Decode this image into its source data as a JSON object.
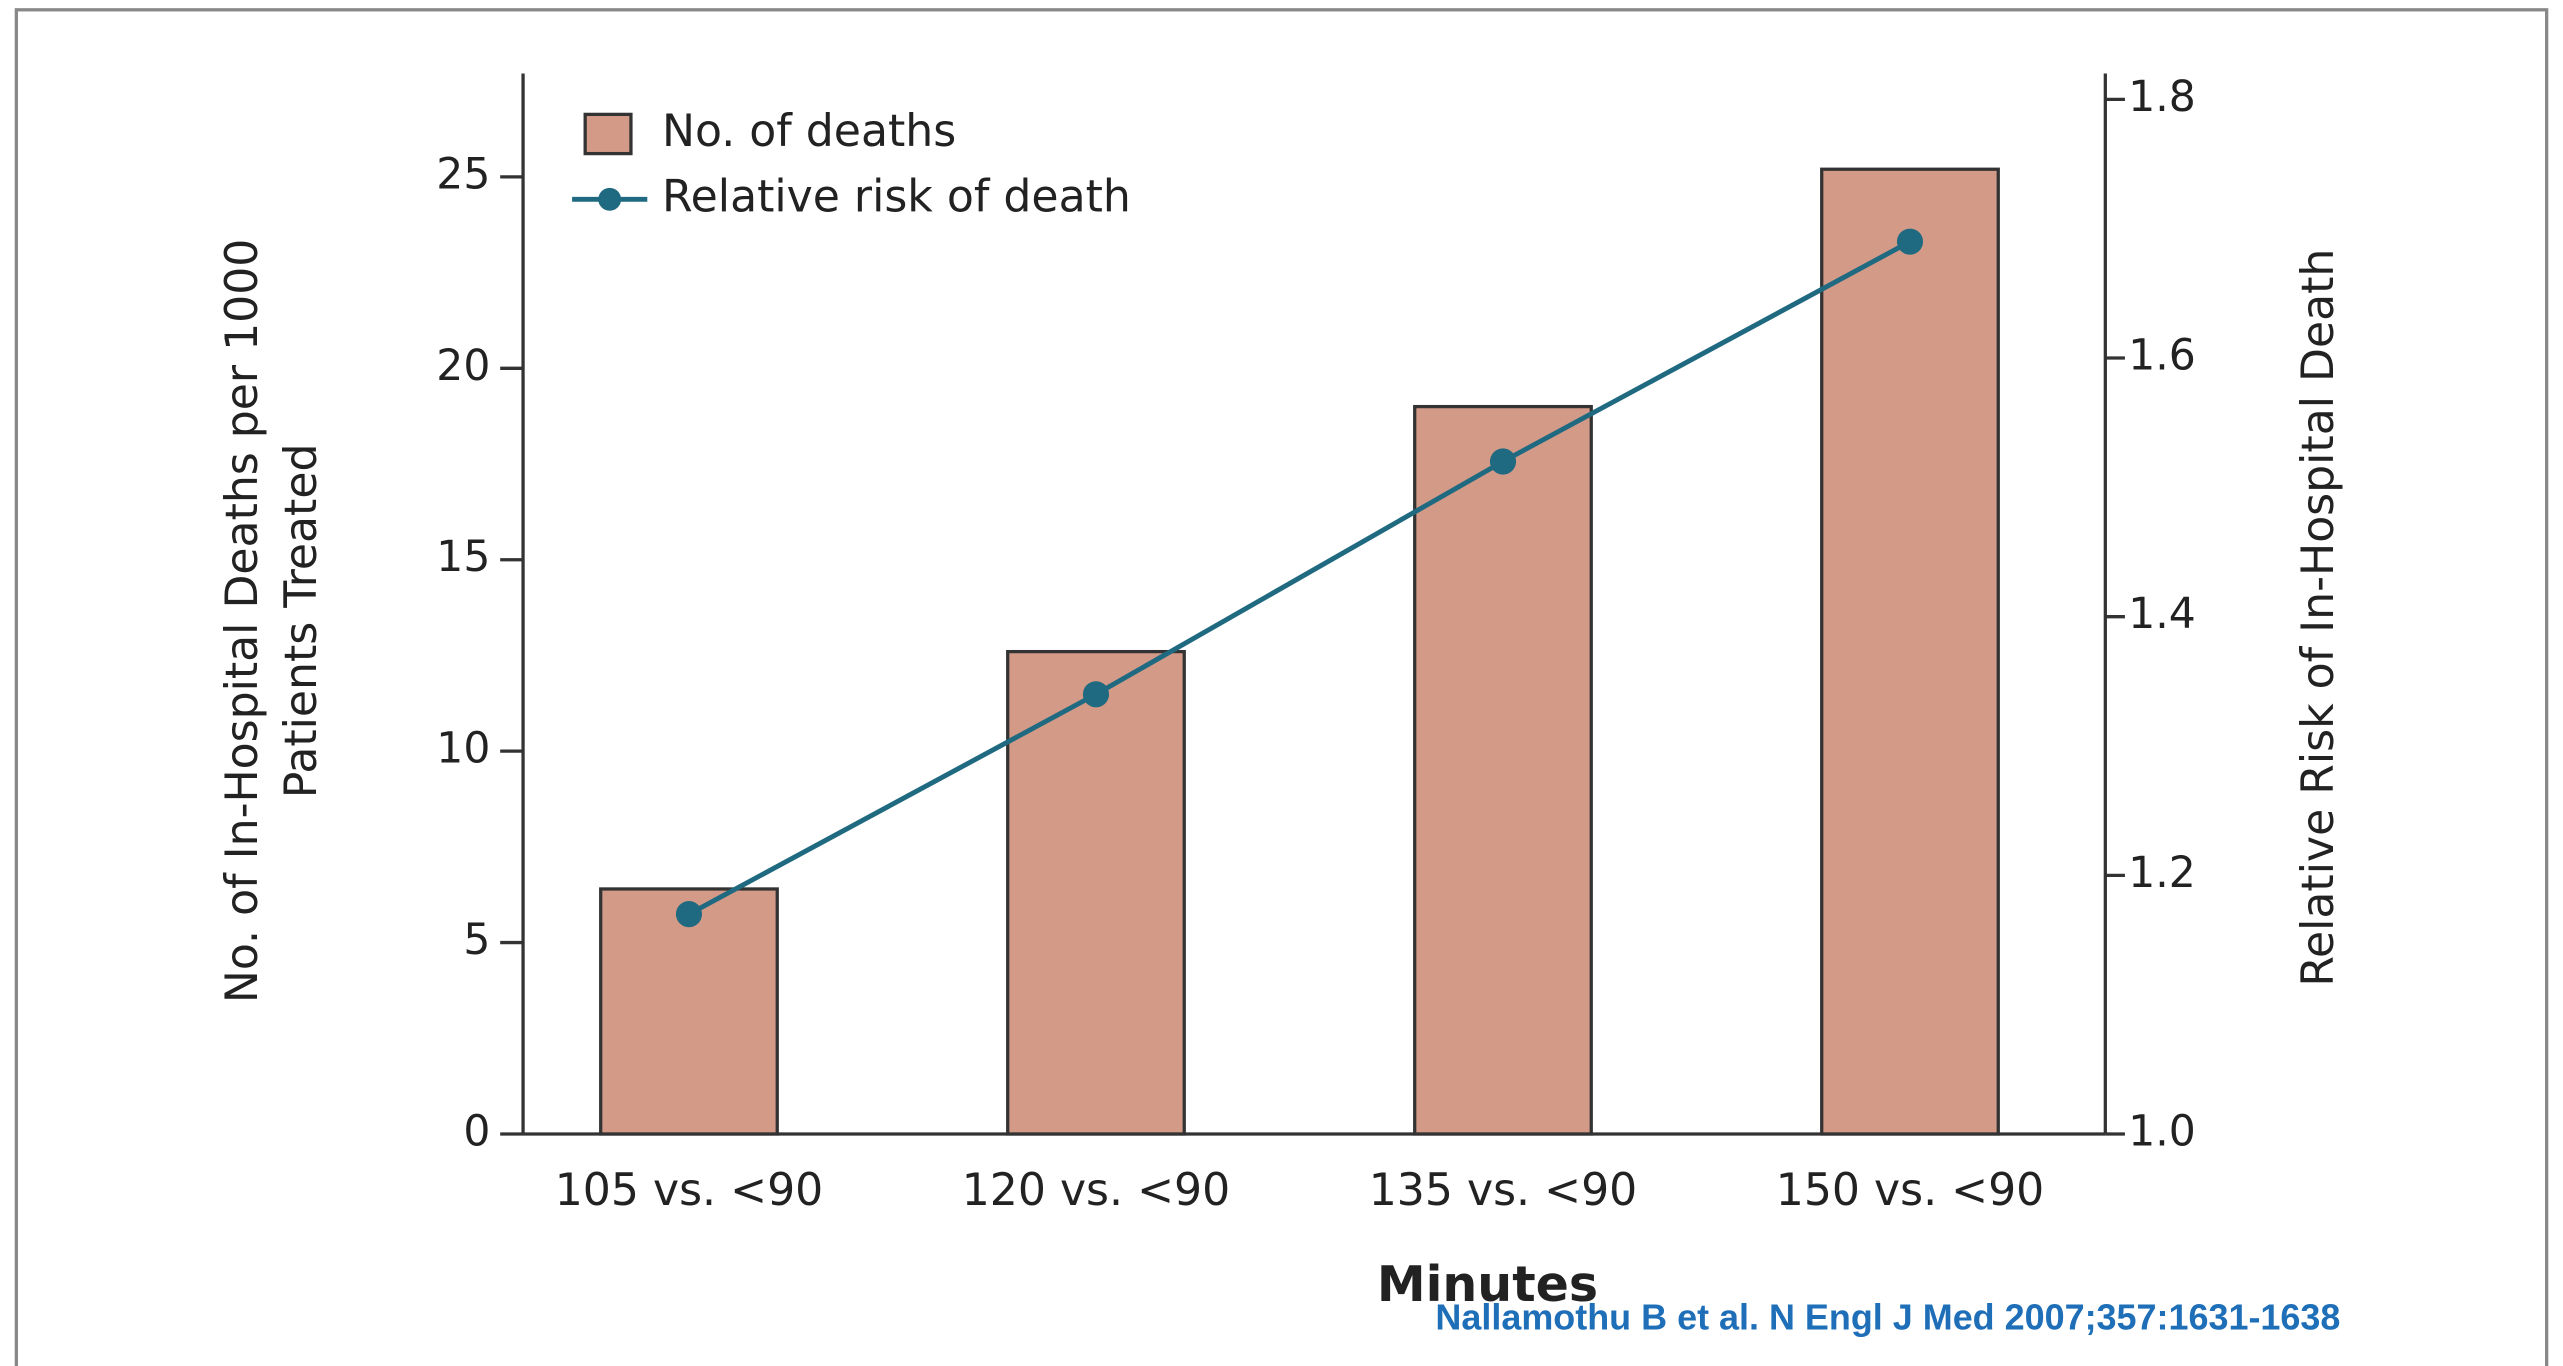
{
  "chart_data": {
    "type": "bar_line",
    "categories": [
      "105 vs. <90",
      "120 vs. <90",
      "135 vs. <90",
      "150 vs. <90"
    ],
    "series": [
      {
        "name": "No. of deaths",
        "type": "bar",
        "color": "#d49a88",
        "values": [
          6.4,
          12.6,
          19.0,
          25.2
        ]
      },
      {
        "name": "Relative risk of death",
        "type": "line",
        "axis": "y2",
        "color": "#1f6a80",
        "values": [
          1.17,
          1.34,
          1.52,
          1.69
        ]
      }
    ],
    "ylim": [
      0,
      27.7
    ],
    "yticks": [
      0,
      5,
      10,
      15,
      20,
      25
    ],
    "y2lim": [
      1.0,
      1.82
    ],
    "y2ticks": [
      {
        "value": 1,
        "label": "1.0"
      },
      1.2,
      1.4,
      1.6,
      1.8
    ],
    "y_label": [
      "No. of In-Hospital Deaths per 1000",
      "Patients Treated"
    ],
    "y2_label": "Relative Risk of In-Hospital Death",
    "x_label": "Minutes",
    "source": "Nallamothu B et al. N Engl J Med 2007;357:1631-1638",
    "legend": "upper left"
  }
}
